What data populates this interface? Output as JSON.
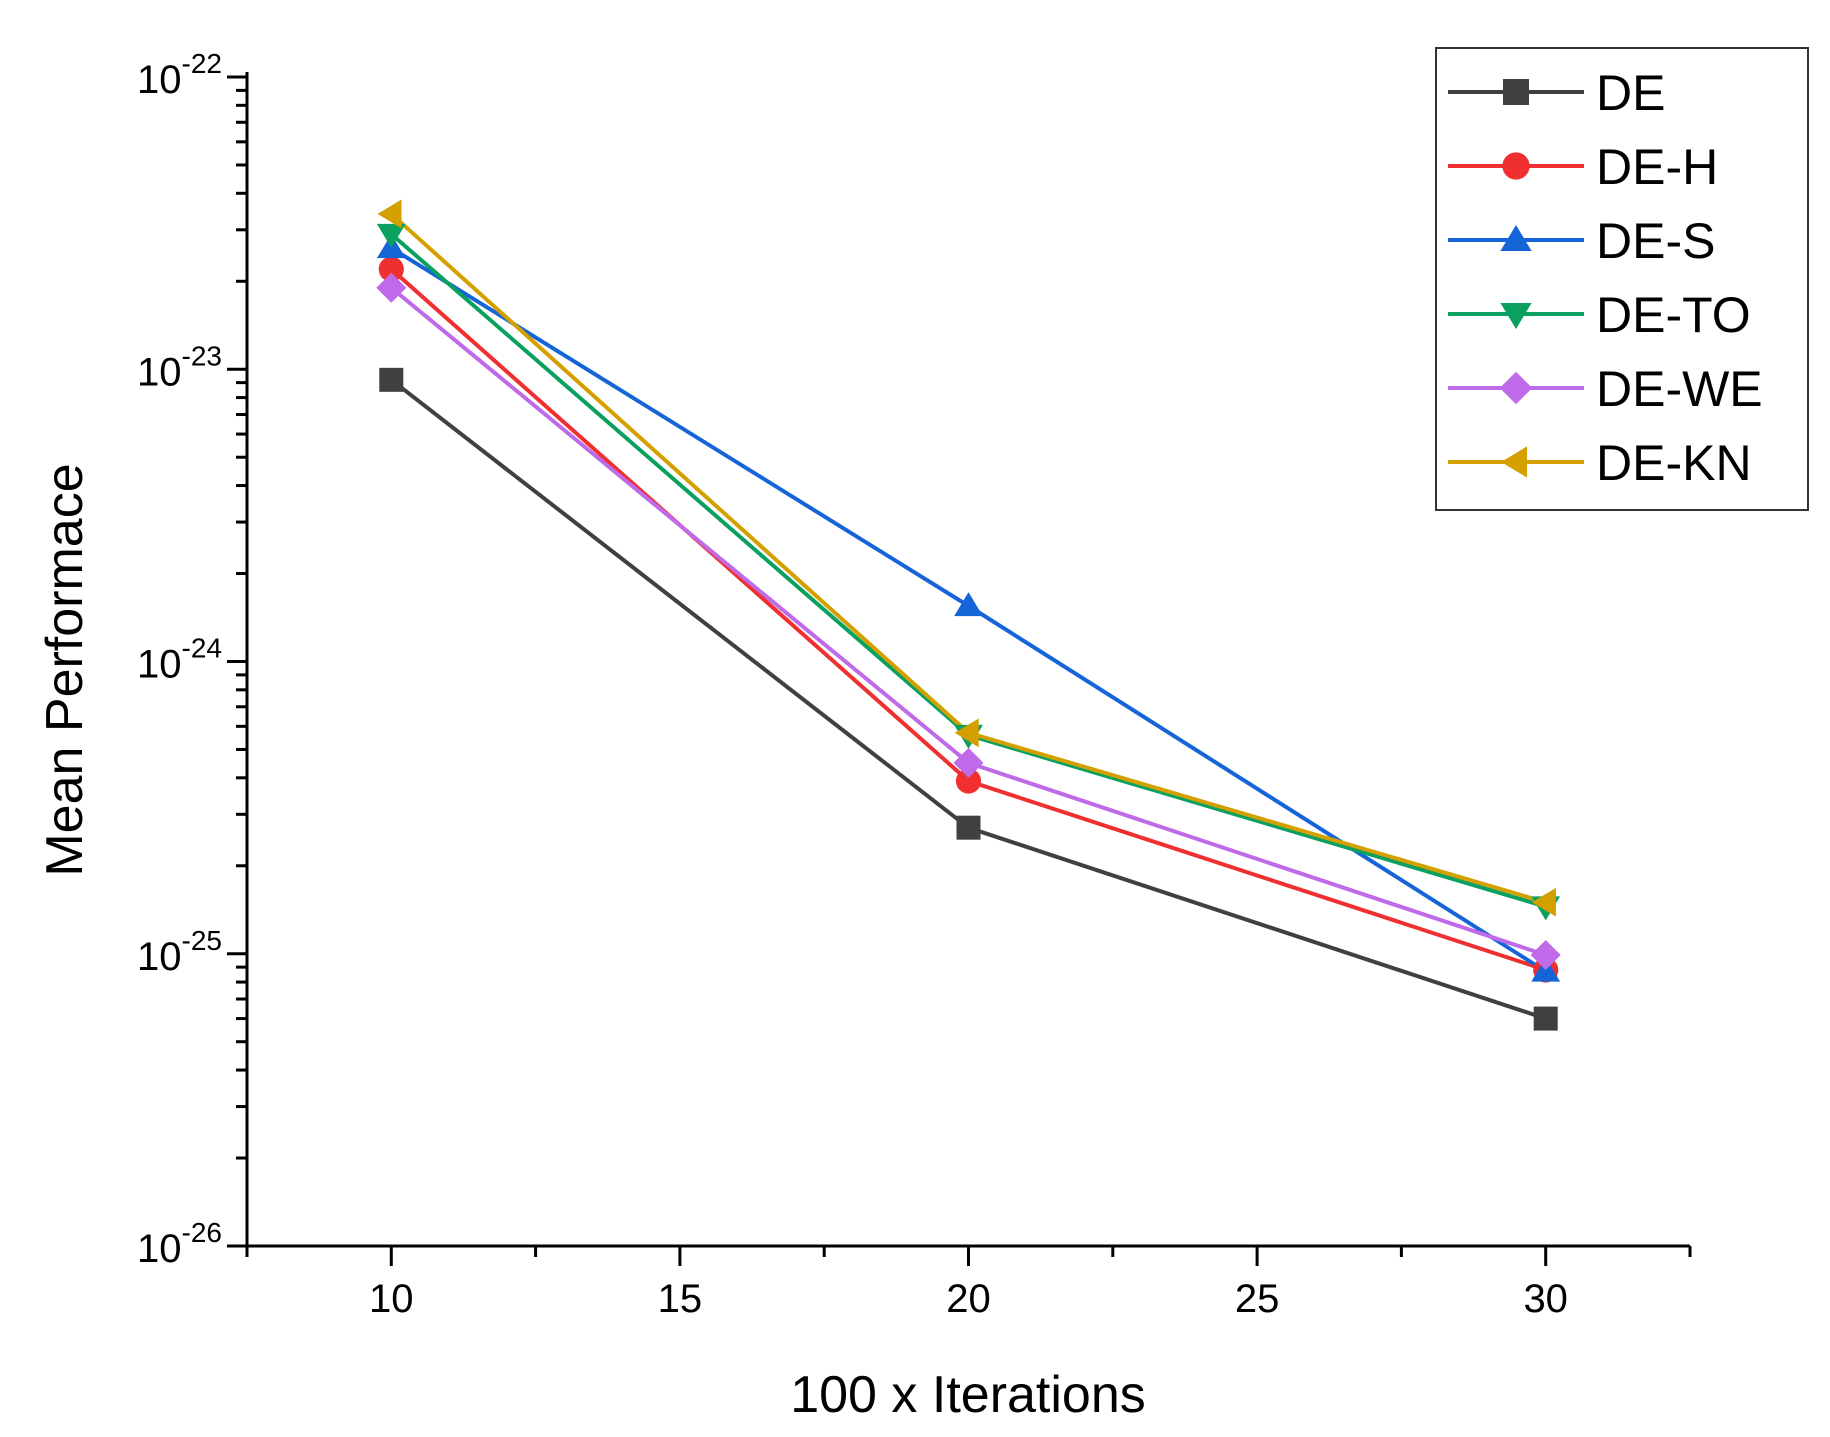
{
  "chart_data": {
    "type": "line",
    "title": "",
    "xlabel": "100 x Iterations",
    "ylabel": "Mean Performace",
    "x": [
      10,
      20,
      30
    ],
    "xlim": [
      7.5,
      32.5
    ],
    "xticks": [
      10,
      15,
      20,
      25,
      30
    ],
    "yscale": "log",
    "ylim": [
      1e-26,
      1e-22
    ],
    "yticks": [
      {
        "value": 1e-22,
        "base": "10",
        "exp": "-22"
      },
      {
        "value": 1e-23,
        "base": "10",
        "exp": "-23"
      },
      {
        "value": 1e-24,
        "base": "10",
        "exp": "-24"
      },
      {
        "value": 1e-25,
        "base": "10",
        "exp": "-25"
      },
      {
        "value": 1e-26,
        "base": "10",
        "exp": "-26"
      }
    ],
    "grid": false,
    "legend_position": "top-right",
    "series": [
      {
        "name": "DE",
        "color": "#404040",
        "marker": "square",
        "values": [
          9.2e-24,
          2.7e-25,
          6e-26
        ]
      },
      {
        "name": "DE-H",
        "color": "#f03030",
        "marker": "circle",
        "values": [
          2.2e-23,
          3.9e-25,
          8.8e-26
        ]
      },
      {
        "name": "DE-S",
        "color": "#1565d8",
        "marker": "triangle-up",
        "values": [
          2.6e-23,
          1.55e-24,
          8.7e-26
        ]
      },
      {
        "name": "DE-TO",
        "color": "#0aa060",
        "marker": "triangle-down",
        "values": [
          2.9e-23,
          5.6e-25,
          1.45e-25
        ]
      },
      {
        "name": "DE-WE",
        "color": "#bf6ae8",
        "marker": "diamond",
        "values": [
          1.9e-23,
          4.5e-25,
          9.9e-26
        ]
      },
      {
        "name": "DE-KN",
        "color": "#d4a000",
        "marker": "triangle-left",
        "values": [
          3.4e-23,
          5.7e-25,
          1.5e-25
        ]
      }
    ]
  }
}
